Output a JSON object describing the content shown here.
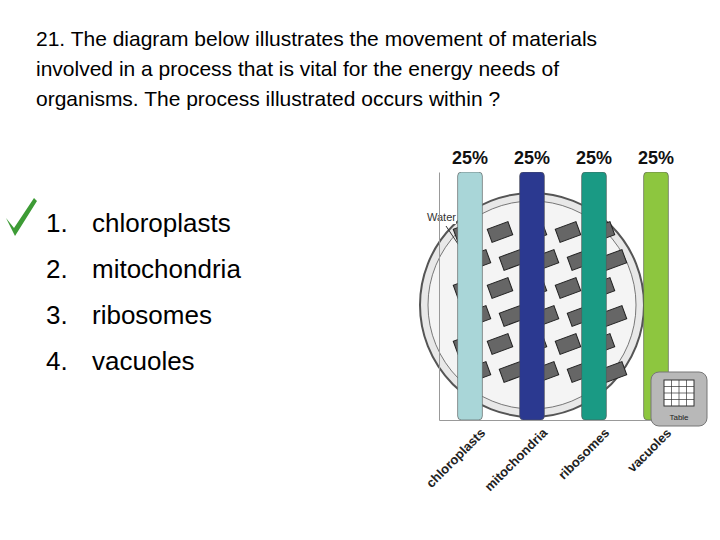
{
  "question": [
    "21. The diagram below illustrates the movement of materials",
    "involved in a process that is vital for the energy needs of",
    "organisms. The process illustrated occurs within ?"
  ],
  "options": [
    {
      "number": "1.",
      "text": "chloroplasts",
      "correct": true
    },
    {
      "number": "2.",
      "text": "mitochondria",
      "correct": false
    },
    {
      "number": "3.",
      "text": "ribosomes",
      "correct": false
    },
    {
      "number": "4.",
      "text": "vacuoles",
      "correct": false
    }
  ],
  "diagram": {
    "labels": [
      "Water"
    ]
  },
  "button": "Table",
  "chart_data": {
    "type": "bar",
    "categories": [
      "chloroplasts",
      "mitochondria",
      "ribosomes",
      "vacuoles"
    ],
    "values": [
      25,
      25,
      25,
      25
    ],
    "value_labels": [
      "25%",
      "25%",
      "25%",
      "25%"
    ],
    "colors": [
      "#a9d6d8",
      "#2b3990",
      "#1a9a84",
      "#8dc63f"
    ],
    "data_labels": true,
    "tick_labels": "x",
    "ylim": [
      0,
      25
    ]
  }
}
